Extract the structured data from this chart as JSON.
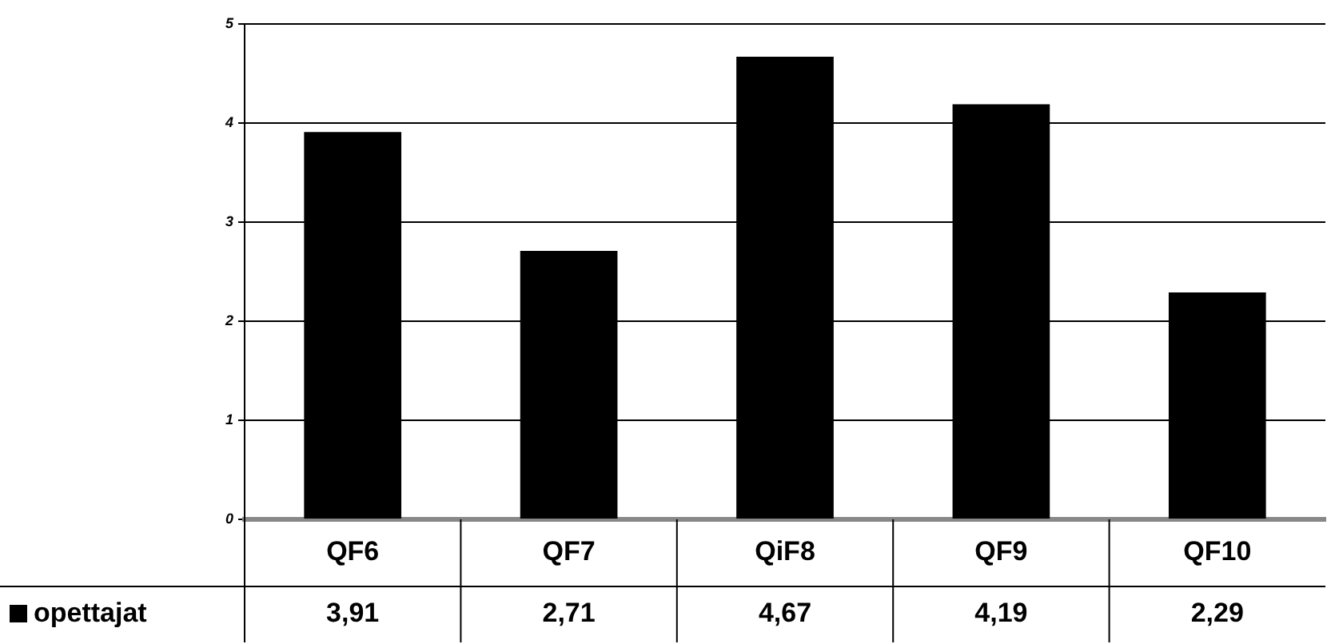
{
  "chart_data": {
    "type": "bar",
    "categories": [
      "QF6",
      "QF7",
      "QiF8",
      "QF9",
      "QF10"
    ],
    "series": [
      {
        "name": "opettajat",
        "color": "#000000",
        "values": [
          3.91,
          2.71,
          4.67,
          4.19,
          2.29
        ],
        "value_labels": [
          "3,91",
          "2,71",
          "4,67",
          "4,19",
          "2,29"
        ]
      }
    ],
    "ylim": [
      0,
      5
    ],
    "yticks": [
      0,
      1,
      2,
      3,
      4,
      5
    ],
    "grid": "y",
    "legend": "bottom"
  }
}
